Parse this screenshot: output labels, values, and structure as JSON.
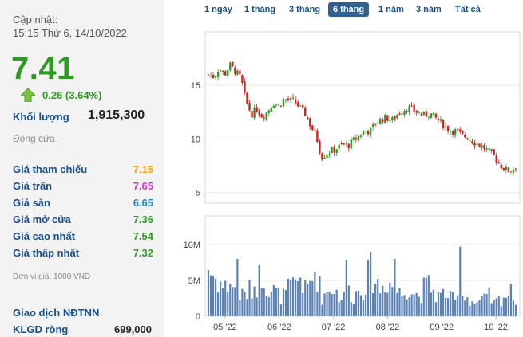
{
  "quote": {
    "update_label": "Cập nhật:",
    "update_time": "15:15 Thứ 6, 14/10/2022",
    "price": "7.41",
    "change": "0.26 (3.64%)",
    "volume_label": "Khối lượng",
    "volume_value": "1,915,300",
    "status": "Đóng cửa",
    "rows": [
      {
        "label": "Giá tham chiếu",
        "value": "7.15",
        "color": "#f0a500"
      },
      {
        "label": "Giá trần",
        "value": "7.65",
        "color": "#d22fd2"
      },
      {
        "label": "Giá sàn",
        "value": "6.65",
        "color": "#1f86c8"
      },
      {
        "label": "Giá mở cửa",
        "value": "7.36",
        "color": "#2e9a23"
      },
      {
        "label": "Giá cao nhất",
        "value": "7.54",
        "color": "#2e9a23"
      },
      {
        "label": "Giá thấp nhất",
        "value": "7.32",
        "color": "#2e9a23"
      }
    ],
    "unit_note": "Đơn vị giá: 1000 VNĐ",
    "foreign_title": "Giao dịch NĐTNN",
    "klgd_label": "KLGD ròng",
    "klgd_value": "699,000"
  },
  "tabs": [
    "1 ngày",
    "1 tháng",
    "3 tháng",
    "6 tháng",
    "1 năm",
    "3 năm",
    "Tất cả"
  ],
  "active_tab": "6 tháng",
  "chart_data": {
    "type": "candlestick+bar",
    "price_axis": {
      "ticks": [
        5,
        10,
        15
      ],
      "range": [
        4,
        20
      ]
    },
    "volume_axis": {
      "ticks": [
        "0",
        "5M",
        "10M"
      ],
      "range": [
        0,
        14
      ]
    },
    "x_labels": [
      "05 '22",
      "06 '22",
      "07 '22",
      "08 '22",
      "09 '22",
      "10 '22"
    ],
    "colors": {
      "up": "#2e9a23",
      "down": "#d11f1f",
      "volume": "#5b82b4"
    },
    "price_path": [
      16.0,
      15.8,
      16.6,
      16.0,
      16.9,
      16.3,
      15.7,
      13.5,
      12.3,
      12.8,
      12.1,
      12.6,
      13.4,
      13.1,
      13.7,
      13.6,
      13.5,
      12.9,
      12.3,
      11.2,
      10.3,
      8.3,
      8.7,
      8.9,
      9.2,
      9.5,
      9.4,
      9.9,
      10.3,
      10.8,
      10.7,
      11.5,
      11.8,
      12.0,
      11.7,
      12.3,
      12.7,
      12.9,
      12.7,
      12.4,
      12.2,
      12.4,
      12.0,
      11.6,
      11.1,
      10.8,
      10.7,
      10.3,
      10.2,
      9.8,
      9.5,
      9.2,
      8.8,
      8.4,
      7.6,
      7.2,
      7.0,
      7.4
    ],
    "volume_path": [
      6.8,
      5.5,
      4.9,
      3.8,
      5.0,
      3.5,
      2.8,
      3.1,
      3.9,
      4.6,
      6.5,
      4.1,
      3.6,
      3.0,
      2.8,
      3.9,
      4.3,
      5.7,
      3.5,
      4.7,
      6.7,
      2.7,
      3.4,
      4.3,
      3.1,
      2.5,
      3.5,
      2.8,
      3.8,
      4.4,
      6.3,
      5.1,
      3.6,
      5.3,
      4.3,
      3.5,
      3.0,
      4.5,
      3.4,
      2.8,
      3.9,
      4.4,
      3.2,
      2.7,
      3.4,
      2.4,
      2.2,
      3.1,
      2.7,
      2.0,
      1.9,
      2.2,
      2.9,
      1.7,
      2.4,
      2.9,
      3.3,
      2.6
    ]
  }
}
